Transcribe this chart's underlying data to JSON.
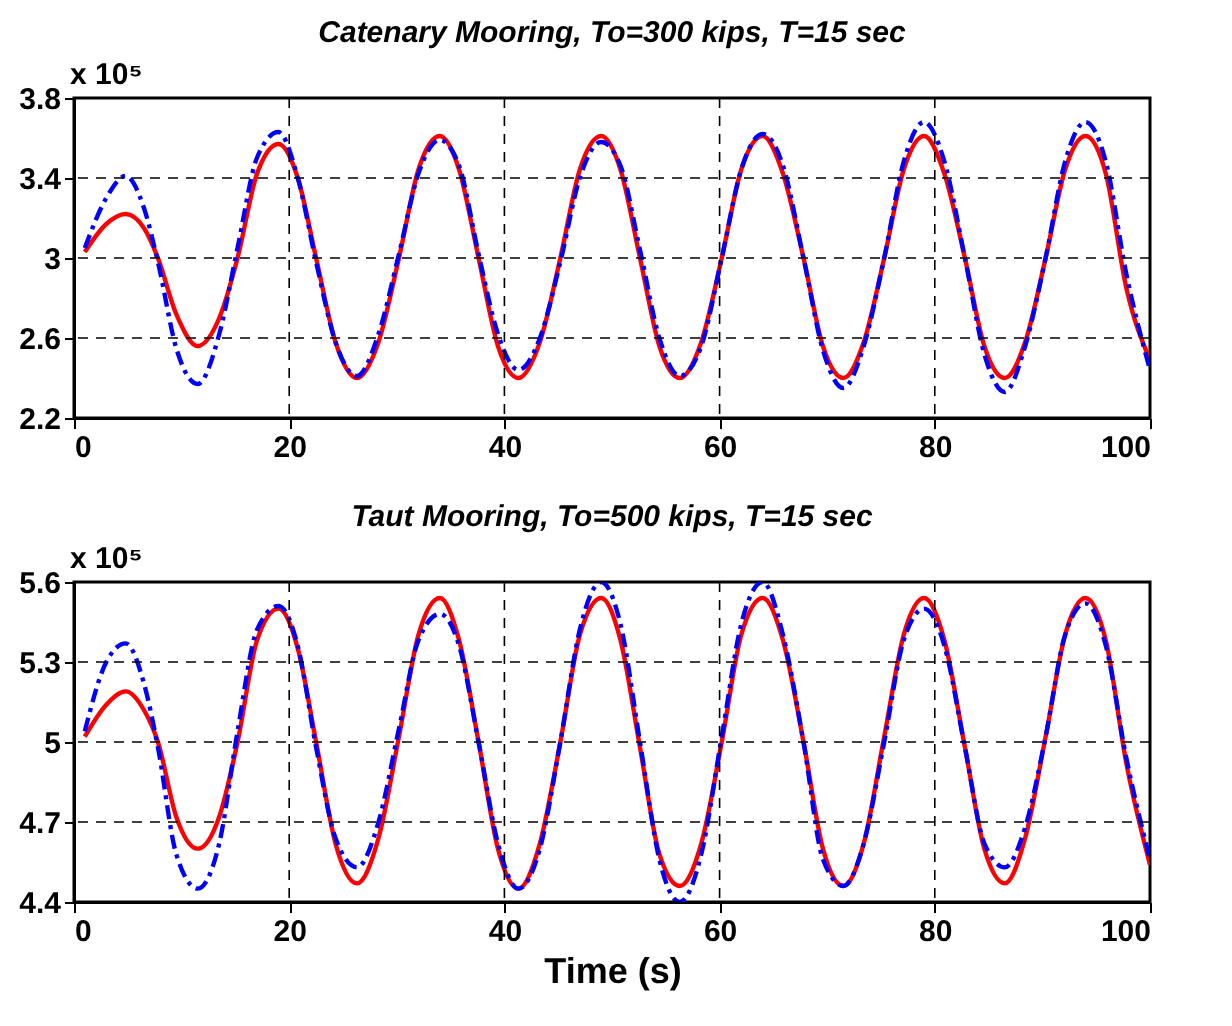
{
  "chart_data": [
    {
      "type": "line",
      "title": "Catenary Mooring, To=300 kips, T=15 sec",
      "annotations": [
        "x 10⁵"
      ],
      "x": [
        1,
        3,
        4.8,
        6.5,
        7.8,
        9.5,
        11.5,
        13.5,
        15.2,
        17,
        19,
        20.8,
        22.5,
        24.3,
        26.3,
        28.3,
        30.2,
        32,
        34,
        35.8,
        37.6,
        39.4,
        41.3,
        43.3,
        45.2,
        47,
        49,
        50.8,
        52.6,
        54.4,
        56.3,
        58.3,
        60.2,
        62,
        64,
        65.9,
        67.8,
        69.6,
        71.5,
        73.4,
        75.3,
        77.1,
        79,
        80.9,
        82.8,
        84.6,
        86.5,
        88.4,
        90.3,
        92.1,
        94,
        95.9,
        97.8,
        100
      ],
      "series": [
        {
          "color": "#ff0000",
          "line_style": "solid",
          "values": [
            3.03,
            3.17,
            3.22,
            3.15,
            3.0,
            2.72,
            2.56,
            2.7,
            3.0,
            3.42,
            3.57,
            3.4,
            3.0,
            2.58,
            2.4,
            2.58,
            3.0,
            3.44,
            3.61,
            3.44,
            3.0,
            2.56,
            2.4,
            2.58,
            3.0,
            3.44,
            3.61,
            3.44,
            3.0,
            2.56,
            2.4,
            2.58,
            3.0,
            3.44,
            3.61,
            3.42,
            3.0,
            2.56,
            2.4,
            2.58,
            3.0,
            3.44,
            3.61,
            3.42,
            3.0,
            2.56,
            2.4,
            2.58,
            3.0,
            3.44,
            3.61,
            3.42,
            2.85,
            2.49
          ]
        },
        {
          "color": "#0000ff",
          "line_style": "dashed",
          "values": [
            3.05,
            3.3,
            3.41,
            3.25,
            2.98,
            2.55,
            2.37,
            2.62,
            3.05,
            3.5,
            3.63,
            3.4,
            2.98,
            2.58,
            2.41,
            2.62,
            3.02,
            3.42,
            3.59,
            3.46,
            3.02,
            2.62,
            2.44,
            2.6,
            2.98,
            3.4,
            3.58,
            3.46,
            3.04,
            2.6,
            2.41,
            2.56,
            3.0,
            3.44,
            3.62,
            3.46,
            3.0,
            2.54,
            2.35,
            2.56,
            3.0,
            3.48,
            3.68,
            3.48,
            3.0,
            2.52,
            2.33,
            2.56,
            3.0,
            3.48,
            3.68,
            3.48,
            2.92,
            2.44
          ]
        }
      ],
      "xlim": [
        0,
        100
      ],
      "xticks": [
        0,
        20,
        40,
        60,
        80,
        100
      ],
      "ylim": [
        2.2,
        3.8
      ],
      "yticks": [
        2.2,
        2.6,
        3,
        3.4,
        3.8
      ],
      "grid": true
    },
    {
      "type": "line",
      "title": "Taut Mooring, To=500 kips, T=15 sec",
      "xlabel": "Time (s)",
      "annotations": [
        "x 10⁵"
      ],
      "x": [
        1,
        3,
        4.8,
        6.5,
        7.8,
        9.5,
        11.5,
        13.5,
        15.2,
        17,
        19,
        20.8,
        22.5,
        24.3,
        26.3,
        28.3,
        30.2,
        32,
        34,
        35.8,
        37.6,
        39.4,
        41.3,
        43.3,
        45.2,
        47,
        49,
        50.8,
        52.6,
        54.4,
        56.3,
        58.3,
        60.2,
        62,
        64,
        65.9,
        67.8,
        69.6,
        71.5,
        73.4,
        75.3,
        77.1,
        79,
        80.9,
        82.8,
        84.6,
        86.5,
        88.4,
        90.3,
        92.1,
        94,
        95.9,
        97.8,
        100
      ],
      "series": [
        {
          "color": "#ff0000",
          "line_style": "solid",
          "values": [
            5.02,
            5.14,
            5.19,
            5.12,
            5.0,
            4.72,
            4.6,
            4.72,
            5.0,
            5.38,
            5.5,
            5.35,
            5.0,
            4.62,
            4.47,
            4.64,
            5.02,
            5.4,
            5.54,
            5.38,
            5.0,
            4.6,
            4.45,
            4.62,
            5.0,
            5.4,
            5.54,
            5.38,
            4.98,
            4.58,
            4.46,
            4.62,
            5.0,
            5.4,
            5.54,
            5.38,
            5.0,
            4.6,
            4.46,
            4.62,
            5.02,
            5.4,
            5.54,
            5.38,
            4.98,
            4.6,
            4.47,
            4.64,
            5.02,
            5.4,
            5.54,
            5.38,
            4.92,
            4.54
          ]
        },
        {
          "color": "#0000ff",
          "line_style": "dashed",
          "values": [
            5.04,
            5.3,
            5.37,
            5.22,
            4.98,
            4.58,
            4.45,
            4.62,
            5.04,
            5.42,
            5.51,
            5.36,
            4.98,
            4.64,
            4.53,
            4.7,
            5.05,
            5.38,
            5.48,
            5.36,
            5.0,
            4.62,
            4.45,
            4.6,
            5.0,
            5.42,
            5.6,
            5.44,
            5.0,
            4.56,
            4.4,
            4.58,
            5.02,
            5.44,
            5.6,
            5.4,
            5.0,
            4.56,
            4.46,
            4.62,
            5.0,
            5.38,
            5.5,
            5.36,
            4.98,
            4.62,
            4.53,
            4.68,
            5.02,
            5.4,
            5.52,
            5.36,
            4.94,
            4.56
          ]
        }
      ],
      "xlim": [
        0,
        100
      ],
      "xticks": [
        0,
        20,
        40,
        60,
        80,
        100
      ],
      "ylim": [
        4.4,
        5.6
      ],
      "yticks": [
        4.4,
        4.7,
        5,
        5.3,
        5.6
      ],
      "grid": true
    }
  ]
}
